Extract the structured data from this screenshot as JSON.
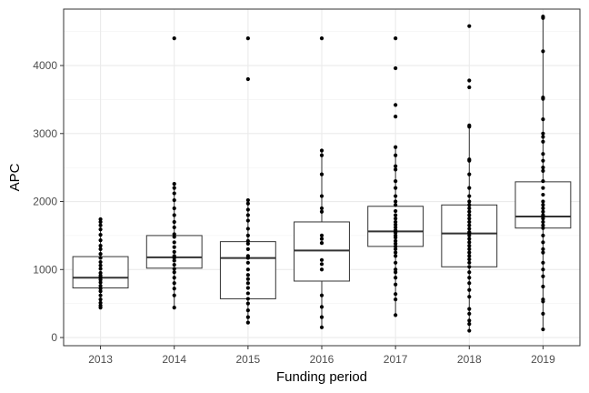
{
  "chart_data": {
    "type": "boxplot",
    "xlabel": "Funding period",
    "ylabel": "APC",
    "categories": [
      "2013",
      "2014",
      "2015",
      "2016",
      "2017",
      "2018",
      "2019"
    ],
    "ylim": [
      -120,
      4830
    ],
    "yticks": [
      0,
      1000,
      2000,
      3000,
      4000
    ],
    "grid": true,
    "boxes": [
      {
        "category": "2013",
        "q1": 730,
        "median": 880,
        "q3": 1190,
        "whisker_low": 440,
        "whisker_high": 1740
      },
      {
        "category": "2014",
        "q1": 1020,
        "median": 1180,
        "q3": 1500,
        "whisker_low": 440,
        "whisker_high": 2260
      },
      {
        "category": "2015",
        "q1": 570,
        "median": 1170,
        "q3": 1410,
        "whisker_low": 220,
        "whisker_high": 2020
      },
      {
        "category": "2016",
        "q1": 830,
        "median": 1280,
        "q3": 1700,
        "whisker_low": 150,
        "whisker_high": 2750
      },
      {
        "category": "2017",
        "q1": 1340,
        "median": 1560,
        "q3": 1930,
        "whisker_low": 330,
        "whisker_high": 2800
      },
      {
        "category": "2018",
        "q1": 1040,
        "median": 1530,
        "q3": 1950,
        "whisker_low": 100,
        "whisker_high": 3120
      },
      {
        "category": "2019",
        "q1": 1610,
        "median": 1780,
        "q3": 2290,
        "whisker_low": 120,
        "whisker_high": 4720
      }
    ],
    "points": [
      {
        "category": "2013",
        "values": [
          1740,
          1700,
          1650,
          1590,
          1510,
          1430,
          1350,
          1300,
          1230,
          1170,
          1110,
          1060,
          1010,
          950,
          910,
          880,
          850,
          810,
          760,
          720,
          680,
          620,
          560,
          510,
          470,
          440
        ]
      },
      {
        "category": "2014",
        "values": [
          4400,
          2260,
          2200,
          2120,
          2020,
          1900,
          1800,
          1700,
          1620,
          1520,
          1480,
          1400,
          1330,
          1260,
          1200,
          1170,
          1130,
          1070,
          1010,
          960,
          880,
          800,
          720,
          620,
          440
        ]
      },
      {
        "category": "2015",
        "values": [
          4400,
          3800,
          2020,
          1970,
          1880,
          1800,
          1720,
          1600,
          1500,
          1420,
          1380,
          1300,
          1200,
          1170,
          1100,
          1000,
          920,
          860,
          800,
          730,
          650,
          570,
          500,
          400,
          300,
          220
        ]
      },
      {
        "category": "2016",
        "values": [
          4400,
          2750,
          2680,
          2400,
          2080,
          1900,
          1850,
          1500,
          1450,
          1390,
          1140,
          1080,
          1000,
          620,
          450,
          300,
          150
        ]
      },
      {
        "category": "2017",
        "values": [
          4400,
          3960,
          3420,
          3250,
          2800,
          2680,
          2520,
          2470,
          2300,
          2200,
          2080,
          2000,
          1950,
          1860,
          1800,
          1750,
          1700,
          1660,
          1620,
          1580,
          1560,
          1540,
          1500,
          1470,
          1420,
          1380,
          1340,
          1300,
          1250,
          1200,
          1100,
          1000,
          960,
          880,
          780,
          640,
          560,
          330
        ]
      },
      {
        "category": "2018",
        "values": [
          4580,
          3780,
          3680,
          3120,
          3100,
          2620,
          2600,
          2400,
          2200,
          2080,
          2000,
          1950,
          1900,
          1850,
          1800,
          1750,
          1700,
          1650,
          1600,
          1550,
          1530,
          1500,
          1450,
          1400,
          1350,
          1300,
          1250,
          1200,
          1150,
          1100,
          1040,
          960,
          880,
          800,
          700,
          600,
          420,
          350,
          250,
          200,
          100
        ]
      },
      {
        "category": "2019",
        "values": [
          4720,
          4700,
          4210,
          3530,
          3510,
          3210,
          3000,
          2950,
          2880,
          2700,
          2600,
          2500,
          2450,
          2300,
          2200,
          2100,
          2000,
          1950,
          1900,
          1850,
          1800,
          1780,
          1750,
          1700,
          1650,
          1610,
          1500,
          1400,
          1300,
          1250,
          1100,
          1000,
          900,
          750,
          560,
          530,
          350,
          120
        ]
      }
    ]
  }
}
